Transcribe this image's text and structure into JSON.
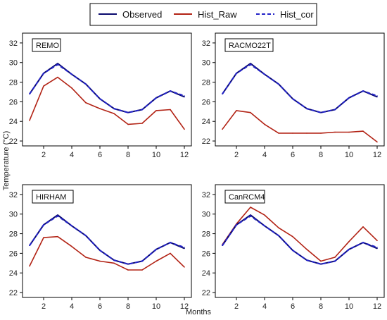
{
  "legend": [
    {
      "label": "Observed",
      "color": "#0a0a6e",
      "dash": "solid"
    },
    {
      "label": "Hist_Raw",
      "color": "#b22214",
      "dash": "solid"
    },
    {
      "label": "Hist_cor",
      "color": "#2323c8",
      "dash": "dashed"
    }
  ],
  "xlabel": "Months",
  "ylabel": "Temperature (°C)",
  "chart_data": [
    {
      "type": "line",
      "title": "REMO",
      "x": [
        1,
        2,
        3,
        4,
        5,
        6,
        7,
        8,
        9,
        10,
        11,
        12
      ],
      "xticks": [
        2,
        4,
        6,
        8,
        10,
        12
      ],
      "yticks": [
        22,
        24,
        26,
        28,
        30,
        32
      ],
      "xlim": [
        0.5,
        12.5
      ],
      "ylim": [
        21.5,
        33
      ],
      "series": [
        {
          "name": "Observed",
          "values": [
            26.8,
            28.9,
            29.9,
            28.8,
            27.8,
            26.3,
            25.3,
            24.9,
            25.2,
            26.4,
            27.1,
            26.5
          ]
        },
        {
          "name": "Hist_Raw",
          "values": [
            24.1,
            27.6,
            28.5,
            27.4,
            25.9,
            25.3,
            24.8,
            23.7,
            23.8,
            25.1,
            25.2,
            23.2
          ]
        },
        {
          "name": "Hist_cor",
          "values": [
            26.8,
            28.9,
            29.8,
            28.8,
            27.8,
            26.3,
            25.3,
            24.9,
            25.2,
            26.4,
            27.1,
            26.6
          ]
        }
      ]
    },
    {
      "type": "line",
      "title": "RACMO22T",
      "x": [
        1,
        2,
        3,
        4,
        5,
        6,
        7,
        8,
        9,
        10,
        11,
        12
      ],
      "xticks": [
        2,
        4,
        6,
        8,
        10,
        12
      ],
      "yticks": [
        22,
        24,
        26,
        28,
        30,
        32
      ],
      "xlim": [
        0.5,
        12.5
      ],
      "ylim": [
        21.5,
        33
      ],
      "series": [
        {
          "name": "Observed",
          "values": [
            26.8,
            28.9,
            29.9,
            28.8,
            27.8,
            26.3,
            25.3,
            24.9,
            25.2,
            26.4,
            27.1,
            26.5
          ]
        },
        {
          "name": "Hist_Raw",
          "values": [
            23.2,
            25.1,
            24.9,
            23.7,
            22.8,
            22.8,
            22.8,
            22.8,
            22.9,
            22.9,
            23.0,
            21.9
          ]
        },
        {
          "name": "Hist_cor",
          "values": [
            26.8,
            28.9,
            29.8,
            28.8,
            27.8,
            26.3,
            25.3,
            24.9,
            25.2,
            26.4,
            27.1,
            26.6
          ]
        }
      ]
    },
    {
      "type": "line",
      "title": "HIRHAM",
      "x": [
        1,
        2,
        3,
        4,
        5,
        6,
        7,
        8,
        9,
        10,
        11,
        12
      ],
      "xticks": [
        2,
        4,
        6,
        8,
        10,
        12
      ],
      "yticks": [
        22,
        24,
        26,
        28,
        30,
        32
      ],
      "xlim": [
        0.5,
        12.5
      ],
      "ylim": [
        21.5,
        33
      ],
      "series": [
        {
          "name": "Observed",
          "values": [
            26.8,
            28.9,
            29.9,
            28.8,
            27.8,
            26.3,
            25.3,
            24.9,
            25.2,
            26.4,
            27.1,
            26.5
          ]
        },
        {
          "name": "Hist_Raw",
          "values": [
            24.7,
            27.6,
            27.7,
            26.7,
            25.6,
            25.2,
            25.0,
            24.3,
            24.3,
            25.2,
            26.0,
            24.6
          ]
        },
        {
          "name": "Hist_cor",
          "values": [
            26.8,
            28.9,
            29.8,
            28.8,
            27.8,
            26.3,
            25.3,
            24.9,
            25.2,
            26.4,
            27.1,
            26.6
          ]
        }
      ]
    },
    {
      "type": "line",
      "title": "CanRCM4",
      "x": [
        1,
        2,
        3,
        4,
        5,
        6,
        7,
        8,
        9,
        10,
        11,
        12
      ],
      "xticks": [
        2,
        4,
        6,
        8,
        10,
        12
      ],
      "yticks": [
        22,
        24,
        26,
        28,
        30,
        32
      ],
      "xlim": [
        0.5,
        12.5
      ],
      "ylim": [
        21.5,
        33
      ],
      "series": [
        {
          "name": "Observed",
          "values": [
            26.8,
            28.9,
            29.9,
            28.8,
            27.8,
            26.3,
            25.3,
            24.9,
            25.2,
            26.4,
            27.1,
            26.5
          ]
        },
        {
          "name": "Hist_Raw",
          "values": [
            26.9,
            29.0,
            30.7,
            29.9,
            28.6,
            27.7,
            26.4,
            25.2,
            25.6,
            27.2,
            28.7,
            27.3
          ]
        },
        {
          "name": "Hist_cor",
          "values": [
            26.8,
            28.9,
            29.8,
            28.8,
            27.8,
            26.3,
            25.3,
            24.9,
            25.2,
            26.4,
            27.1,
            26.6
          ]
        }
      ]
    }
  ]
}
